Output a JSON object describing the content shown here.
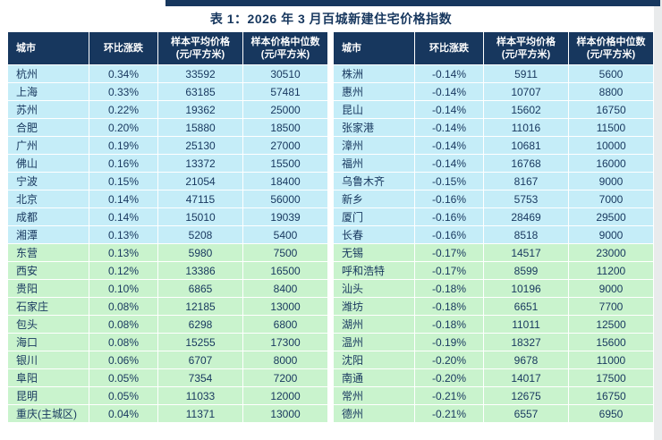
{
  "title": "表 1：2026 年 3 月百城新建住宅价格指数",
  "columns": [
    {
      "label": "城市"
    },
    {
      "label": "环比涨跌"
    },
    {
      "label": "样本平均价格",
      "sub": "(元/平方米)"
    },
    {
      "label": "样本价格中位数",
      "sub": "(元/平方米)"
    }
  ],
  "tables": {
    "left": {
      "rows": [
        {
          "city": "杭州",
          "change": "0.34%",
          "avg": "33592",
          "median": "30510",
          "band": "cyan"
        },
        {
          "city": "上海",
          "change": "0.33%",
          "avg": "63185",
          "median": "57481",
          "band": "cyan"
        },
        {
          "city": "苏州",
          "change": "0.22%",
          "avg": "19362",
          "median": "25000",
          "band": "cyan"
        },
        {
          "city": "合肥",
          "change": "0.20%",
          "avg": "15880",
          "median": "18500",
          "band": "cyan"
        },
        {
          "city": "广州",
          "change": "0.19%",
          "avg": "25130",
          "median": "27000",
          "band": "cyan"
        },
        {
          "city": "佛山",
          "change": "0.16%",
          "avg": "13372",
          "median": "15500",
          "band": "cyan"
        },
        {
          "city": "宁波",
          "change": "0.15%",
          "avg": "21054",
          "median": "18400",
          "band": "cyan"
        },
        {
          "city": "北京",
          "change": "0.14%",
          "avg": "47115",
          "median": "56000",
          "band": "cyan"
        },
        {
          "city": "成都",
          "change": "0.14%",
          "avg": "15010",
          "median": "19039",
          "band": "cyan"
        },
        {
          "city": "湘潭",
          "change": "0.13%",
          "avg": "5208",
          "median": "5400",
          "band": "cyan"
        },
        {
          "city": "东营",
          "change": "0.13%",
          "avg": "5980",
          "median": "7500",
          "band": "green"
        },
        {
          "city": "西安",
          "change": "0.12%",
          "avg": "13386",
          "median": "16500",
          "band": "green"
        },
        {
          "city": "贵阳",
          "change": "0.10%",
          "avg": "6865",
          "median": "8400",
          "band": "green"
        },
        {
          "city": "石家庄",
          "change": "0.08%",
          "avg": "12185",
          "median": "13000",
          "band": "green"
        },
        {
          "city": "包头",
          "change": "0.08%",
          "avg": "6298",
          "median": "6800",
          "band": "green"
        },
        {
          "city": "海口",
          "change": "0.08%",
          "avg": "15255",
          "median": "17300",
          "band": "green"
        },
        {
          "city": "银川",
          "change": "0.06%",
          "avg": "6707",
          "median": "8000",
          "band": "green"
        },
        {
          "city": "阜阳",
          "change": "0.05%",
          "avg": "7354",
          "median": "7200",
          "band": "green"
        },
        {
          "city": "昆明",
          "change": "0.05%",
          "avg": "11033",
          "median": "12000",
          "band": "green"
        },
        {
          "city": "重庆(主城区)",
          "change": "0.04%",
          "avg": "11371",
          "median": "13000",
          "band": "green"
        }
      ]
    },
    "right": {
      "rows": [
        {
          "city": "株洲",
          "change": "-0.14%",
          "avg": "5911",
          "median": "5600",
          "band": "cyan"
        },
        {
          "city": "惠州",
          "change": "-0.14%",
          "avg": "10707",
          "median": "8800",
          "band": "cyan"
        },
        {
          "city": "昆山",
          "change": "-0.14%",
          "avg": "15602",
          "median": "16750",
          "band": "cyan"
        },
        {
          "city": "张家港",
          "change": "-0.14%",
          "avg": "11016",
          "median": "11500",
          "band": "cyan"
        },
        {
          "city": "漳州",
          "change": "-0.14%",
          "avg": "10681",
          "median": "10000",
          "band": "cyan"
        },
        {
          "city": "福州",
          "change": "-0.14%",
          "avg": "16768",
          "median": "16000",
          "band": "cyan"
        },
        {
          "city": "乌鲁木齐",
          "change": "-0.15%",
          "avg": "8167",
          "median": "9000",
          "band": "cyan"
        },
        {
          "city": "新乡",
          "change": "-0.16%",
          "avg": "5753",
          "median": "7000",
          "band": "cyan"
        },
        {
          "city": "厦门",
          "change": "-0.16%",
          "avg": "28469",
          "median": "29500",
          "band": "cyan"
        },
        {
          "city": "长春",
          "change": "-0.16%",
          "avg": "8518",
          "median": "9000",
          "band": "cyan"
        },
        {
          "city": "无锡",
          "change": "-0.17%",
          "avg": "14517",
          "median": "23000",
          "band": "green"
        },
        {
          "city": "呼和浩特",
          "change": "-0.17%",
          "avg": "8599",
          "median": "11200",
          "band": "green"
        },
        {
          "city": "汕头",
          "change": "-0.18%",
          "avg": "10196",
          "median": "9000",
          "band": "green"
        },
        {
          "city": "潍坊",
          "change": "-0.18%",
          "avg": "6651",
          "median": "7700",
          "band": "green"
        },
        {
          "city": "湖州",
          "change": "-0.18%",
          "avg": "11011",
          "median": "12500",
          "band": "green"
        },
        {
          "city": "温州",
          "change": "-0.19%",
          "avg": "18327",
          "median": "15600",
          "band": "green"
        },
        {
          "city": "沈阳",
          "change": "-0.20%",
          "avg": "9678",
          "median": "11000",
          "band": "green"
        },
        {
          "city": "南通",
          "change": "-0.20%",
          "avg": "14017",
          "median": "17500",
          "band": "green"
        },
        {
          "city": "常州",
          "change": "-0.21%",
          "avg": "12675",
          "median": "16750",
          "band": "green"
        },
        {
          "city": "德州",
          "change": "-0.21%",
          "avg": "6557",
          "median": "6950",
          "band": "green"
        }
      ]
    }
  },
  "colors": {
    "header_bg": "#17375e",
    "text": "#17375e",
    "bar": "#17375e",
    "band_cyan": "#c5edf8",
    "band_green": "#c9f3cd",
    "page_edge": "#e9ebec"
  }
}
